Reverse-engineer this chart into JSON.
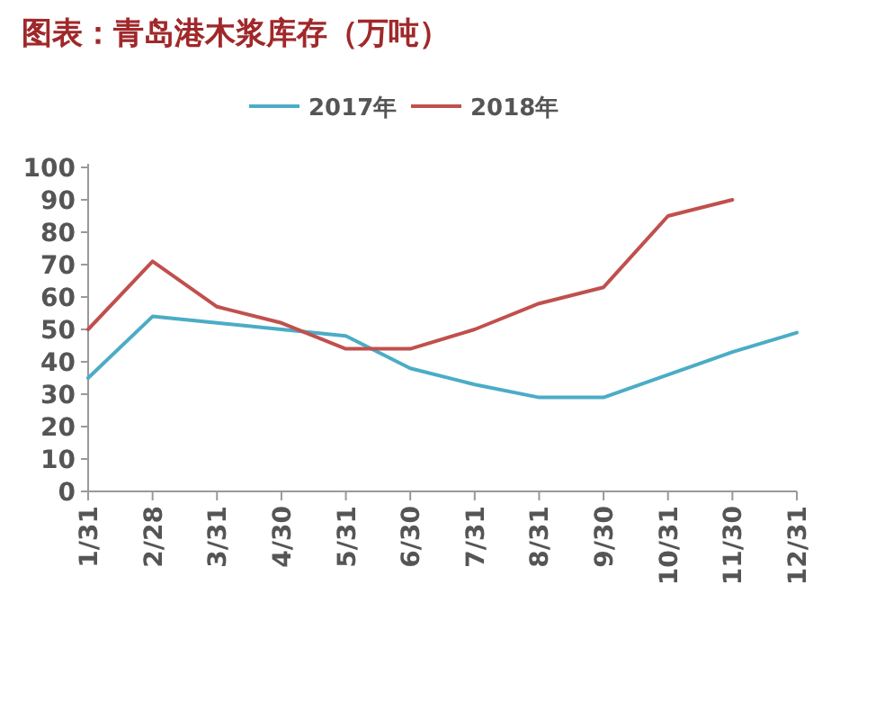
{
  "chart_data": {
    "type": "line",
    "title": "图表：青岛港木浆库存（万吨）",
    "categories": [
      "1/31",
      "2/28",
      "3/31",
      "4/30",
      "5/31",
      "6/30",
      "7/31",
      "8/31",
      "9/30",
      "10/31",
      "11/30",
      "12/31"
    ],
    "series": [
      {
        "name": "2017年",
        "color": "#4bacc6",
        "values": [
          35,
          54,
          52,
          50,
          48,
          38,
          33,
          29,
          29,
          36,
          43,
          49
        ]
      },
      {
        "name": "2018年",
        "color": "#c0504d",
        "values": [
          50,
          71,
          57,
          52,
          44,
          44,
          50,
          58,
          63,
          85,
          90,
          null
        ]
      }
    ],
    "ylim": [
      0,
      100
    ],
    "yticks": [
      0,
      10,
      20,
      30,
      40,
      50,
      60,
      70,
      80,
      90,
      100
    ],
    "legend": "top"
  }
}
